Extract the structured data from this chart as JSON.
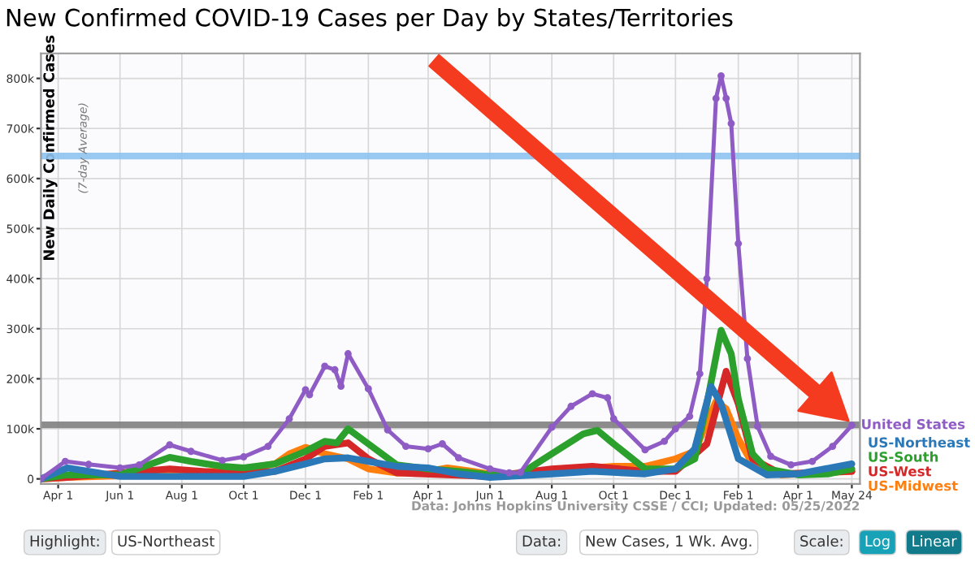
{
  "chart_data": {
    "type": "line",
    "title": "New Confirmed COVID-19 Cases per Day by States/Territories",
    "ylabel": "New Daily Confirmed Cases",
    "annotations": [
      "(7-day Average)",
      "Data: Johns Hopkins University CSSE / CCI; Updated: 05/25/2022",
      "Highlight:",
      "US-Northeast",
      "Data:",
      "New Cases, 1 Wk. Avg.",
      "Scale:",
      "Log",
      "Linear"
    ],
    "xlim": [
      "2020-03-15",
      "2022-06-01"
    ],
    "xticks": [
      {
        "value": "2020-04-01",
        "label": "Apr 1"
      },
      {
        "value": "2020-06-01",
        "label": "Jun 1"
      },
      {
        "value": "2020-08-01",
        "label": "Aug 1"
      },
      {
        "value": "2020-10-01",
        "label": "Oct 1"
      },
      {
        "value": "2020-12-01",
        "label": "Dec 1"
      },
      {
        "value": "2021-02-01",
        "label": "Feb 1"
      },
      {
        "value": "2021-04-01",
        "label": "Apr 1"
      },
      {
        "value": "2021-06-01",
        "label": "Jun 1"
      },
      {
        "value": "2021-08-01",
        "label": "Aug 1"
      },
      {
        "value": "2021-10-01",
        "label": "Oct 1"
      },
      {
        "value": "2021-12-01",
        "label": "Dec 1"
      },
      {
        "value": "2022-02-01",
        "label": "Feb 1"
      },
      {
        "value": "2022-04-01",
        "label": "Apr 1"
      },
      {
        "value": "2022-05-24",
        "label": "May 24"
      }
    ],
    "ylim": [
      -10000,
      850000
    ],
    "yticks": [
      0,
      {
        "value": 100000,
        "label": "100k"
      },
      {
        "value": 200000,
        "label": "200k"
      },
      {
        "value": 300000,
        "label": "300k"
      },
      {
        "value": 400000,
        "label": "400k"
      },
      {
        "value": 500000,
        "label": "500k"
      },
      {
        "value": 600000,
        "label": "600k"
      },
      {
        "value": 700000,
        "label": "700k"
      },
      {
        "value": 800000,
        "label": "800k"
      }
    ],
    "grid": true,
    "line_style": "solid",
    "ref_lines": [
      {
        "axis": "y",
        "value": 645000,
        "label": null,
        "color": "#8ec3f0"
      },
      {
        "axis": "y",
        "value": 108000,
        "label": null,
        "color": "#808080"
      }
    ],
    "series": [
      {
        "name": "United States",
        "color": "#8e5cc4",
        "marker": "circle",
        "x": [
          "2020-03-15",
          "2020-04-08",
          "2020-05-01",
          "2020-06-01",
          "2020-06-20",
          "2020-07-20",
          "2020-08-10",
          "2020-09-10",
          "2020-10-01",
          "2020-10-25",
          "2020-11-15",
          "2020-12-01",
          "2020-12-05",
          "2020-12-20",
          "2020-12-30",
          "2021-01-05",
          "2021-01-12",
          "2021-02-01",
          "2021-02-20",
          "2021-03-10",
          "2021-04-01",
          "2021-04-15",
          "2021-05-01",
          "2021-06-01",
          "2021-06-20",
          "2021-07-01",
          "2021-08-01",
          "2021-08-20",
          "2021-09-10",
          "2021-09-25",
          "2021-10-01",
          "2021-11-01",
          "2021-11-20",
          "2021-12-01",
          "2021-12-15",
          "2021-12-25",
          "2022-01-01",
          "2022-01-10",
          "2022-01-15",
          "2022-01-20",
          "2022-01-25",
          "2022-02-01",
          "2022-02-10",
          "2022-02-20",
          "2022-03-05",
          "2022-03-25",
          "2022-04-15",
          "2022-05-05",
          "2022-05-24"
        ],
        "values": [
          0,
          35000,
          29000,
          22000,
          28000,
          68000,
          55000,
          37000,
          44000,
          65000,
          120000,
          178000,
          168000,
          225000,
          218000,
          185000,
          250000,
          180000,
          98000,
          65000,
          60000,
          70000,
          42000,
          20000,
          12000,
          13000,
          103000,
          145000,
          170000,
          162000,
          120000,
          58000,
          75000,
          100000,
          125000,
          210000,
          400000,
          760000,
          805000,
          760000,
          710000,
          470000,
          240000,
          105000,
          45000,
          28000,
          35000,
          65000,
          107000
        ]
      },
      {
        "name": "US-Northeast",
        "color": "#2a78b8",
        "x": [
          "2020-03-15",
          "2020-04-10",
          "2020-05-01",
          "2020-06-01",
          "2020-08-01",
          "2020-10-01",
          "2020-11-01",
          "2020-12-01",
          "2020-12-20",
          "2021-01-12",
          "2021-02-01",
          "2021-03-01",
          "2021-04-01",
          "2021-05-01",
          "2021-06-01",
          "2021-08-01",
          "2021-09-10",
          "2021-11-01",
          "2021-12-01",
          "2021-12-20",
          "2022-01-05",
          "2022-01-15",
          "2022-02-01",
          "2022-03-01",
          "2022-04-01",
          "2022-05-24"
        ],
        "values": [
          0,
          22000,
          15000,
          5000,
          5000,
          5000,
          15000,
          30000,
          40000,
          42000,
          35000,
          25000,
          22000,
          10000,
          3000,
          10000,
          15000,
          10000,
          20000,
          60000,
          185000,
          150000,
          40000,
          8000,
          10000,
          30000
        ]
      },
      {
        "name": "US-South",
        "color": "#2ca02c",
        "x": [
          "2020-03-15",
          "2020-04-10",
          "2020-06-01",
          "2020-07-20",
          "2020-08-10",
          "2020-09-10",
          "2020-10-01",
          "2020-11-01",
          "2020-12-01",
          "2020-12-20",
          "2021-01-01",
          "2021-01-12",
          "2021-02-01",
          "2021-03-01",
          "2021-04-01",
          "2021-05-01",
          "2021-06-01",
          "2021-07-01",
          "2021-08-01",
          "2021-09-01",
          "2021-09-15",
          "2021-10-01",
          "2021-11-01",
          "2021-12-01",
          "2021-12-20",
          "2022-01-01",
          "2022-01-15",
          "2022-01-25",
          "2022-02-01",
          "2022-02-15",
          "2022-03-01",
          "2022-04-01",
          "2022-05-01",
          "2022-05-24"
        ],
        "values": [
          0,
          8000,
          8000,
          43000,
          35000,
          25000,
          22000,
          30000,
          55000,
          75000,
          72000,
          100000,
          70000,
          28000,
          20000,
          15000,
          8000,
          10000,
          50000,
          90000,
          97000,
          70000,
          20000,
          20000,
          40000,
          150000,
          297000,
          250000,
          160000,
          50000,
          20000,
          8000,
          10000,
          20000
        ]
      },
      {
        "name": "US-West",
        "color": "#d62728",
        "x": [
          "2020-03-15",
          "2020-04-10",
          "2020-07-20",
          "2020-09-10",
          "2020-11-01",
          "2020-12-01",
          "2020-12-20",
          "2021-01-12",
          "2021-02-01",
          "2021-03-01",
          "2021-06-01",
          "2021-08-01",
          "2021-09-10",
          "2021-11-01",
          "2021-12-01",
          "2022-01-01",
          "2022-01-20",
          "2022-02-01",
          "2022-02-15",
          "2022-03-15",
          "2022-05-24"
        ],
        "values": [
          0,
          3000,
          20000,
          12000,
          15000,
          40000,
          65000,
          72000,
          40000,
          12000,
          5000,
          20000,
          25000,
          15000,
          15000,
          70000,
          215000,
          150000,
          40000,
          10000,
          15000
        ]
      },
      {
        "name": "US-Midwest",
        "color": "#ff7f0e",
        "x": [
          "2020-03-15",
          "2020-04-10",
          "2020-06-01",
          "2020-08-01",
          "2020-10-01",
          "2020-11-01",
          "2020-11-15",
          "2020-12-01",
          "2020-12-20",
          "2021-01-12",
          "2021-02-01",
          "2021-03-01",
          "2021-04-01",
          "2021-04-20",
          "2021-05-15",
          "2021-06-15",
          "2021-08-01",
          "2021-09-10",
          "2021-10-01",
          "2021-11-01",
          "2021-12-01",
          "2021-12-20",
          "2022-01-10",
          "2022-01-20",
          "2022-02-01",
          "2022-02-15",
          "2022-03-15",
          "2022-05-24"
        ],
        "values": [
          0,
          3000,
          6000,
          10000,
          20000,
          30000,
          50000,
          63000,
          50000,
          40000,
          20000,
          12000,
          15000,
          22000,
          15000,
          5000,
          15000,
          22000,
          25000,
          25000,
          40000,
          55000,
          155000,
          140000,
          80000,
          30000,
          8000,
          15000
        ]
      }
    ]
  }
}
